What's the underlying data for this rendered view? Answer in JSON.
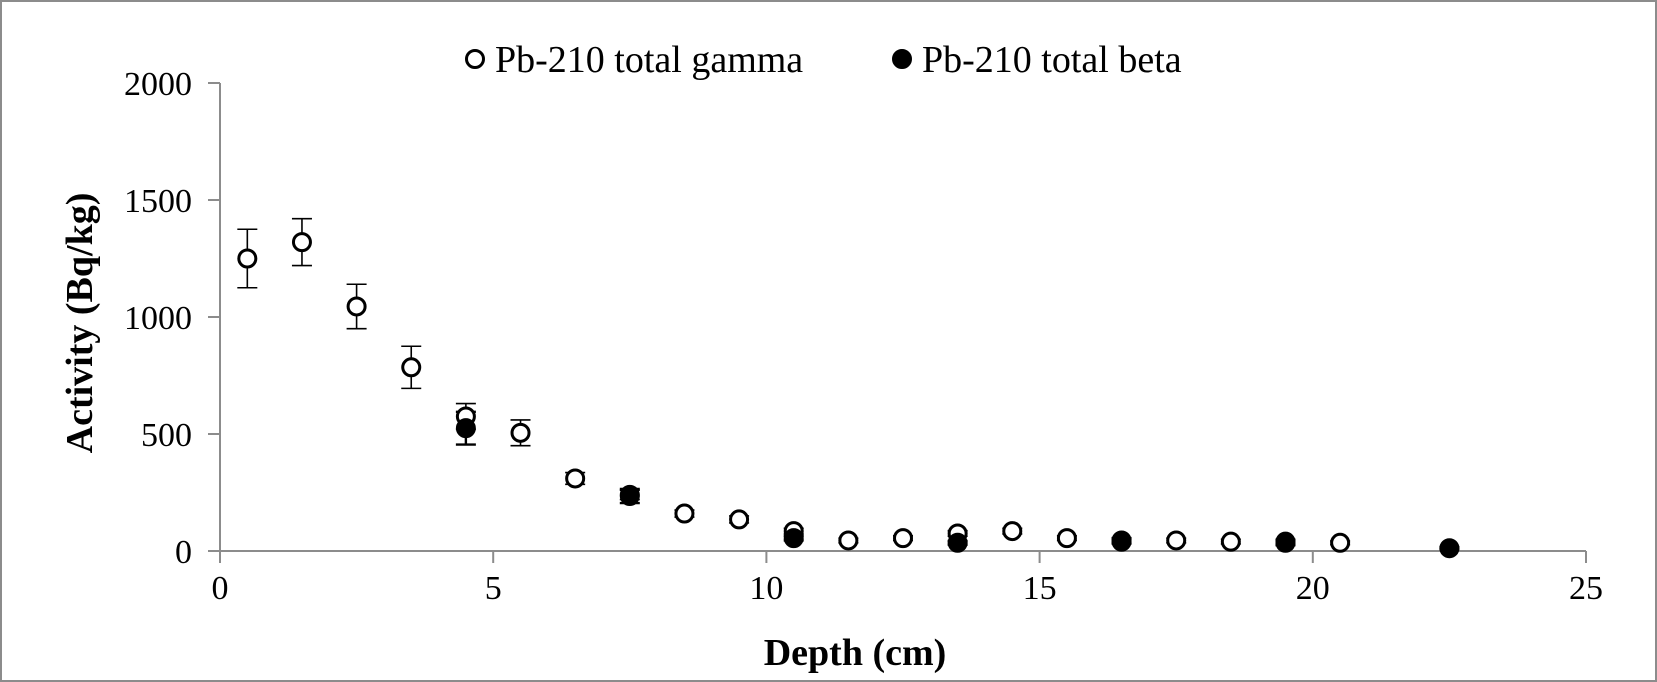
{
  "chart_data": {
    "type": "scatter",
    "xlabel": "Depth (cm)",
    "ylabel": "Activity (Bq/kg)",
    "xlim": [
      0,
      25
    ],
    "ylim": [
      0,
      2000
    ],
    "x_ticks": [
      "0",
      "5",
      "10",
      "15",
      "20",
      "25"
    ],
    "y_ticks": [
      "0",
      "500",
      "1000",
      "1500",
      "2000"
    ],
    "grid": false,
    "legend_position": "top",
    "series": [
      {
        "name": "Pb-210 total gamma",
        "marker": "open-circle",
        "color": "#000000",
        "points": [
          {
            "x": 0.5,
            "y": 1250,
            "err": 125
          },
          {
            "x": 1.5,
            "y": 1320,
            "err": 100
          },
          {
            "x": 2.5,
            "y": 1045,
            "err": 95
          },
          {
            "x": 3.5,
            "y": 785,
            "err": 90
          },
          {
            "x": 4.5,
            "y": 575,
            "err": 55
          },
          {
            "x": 5.5,
            "y": 505,
            "err": 55
          },
          {
            "x": 6.5,
            "y": 310,
            "err": 25
          },
          {
            "x": 7.5,
            "y": 240,
            "err": 20
          },
          {
            "x": 8.5,
            "y": 160,
            "err": 15
          },
          {
            "x": 9.5,
            "y": 135,
            "err": 15
          },
          {
            "x": 10.5,
            "y": 85,
            "err": 12
          },
          {
            "x": 11.5,
            "y": 45,
            "err": 10
          },
          {
            "x": 12.5,
            "y": 55,
            "err": 10
          },
          {
            "x": 13.5,
            "y": 75,
            "err": 12
          },
          {
            "x": 14.5,
            "y": 85,
            "err": 12
          },
          {
            "x": 15.5,
            "y": 55,
            "err": 10
          },
          {
            "x": 16.5,
            "y": 40,
            "err": 10
          },
          {
            "x": 17.5,
            "y": 45,
            "err": 10
          },
          {
            "x": 18.5,
            "y": 40,
            "err": 10
          },
          {
            "x": 19.5,
            "y": 40,
            "err": 10
          },
          {
            "x": 20.5,
            "y": 35,
            "err": 8
          }
        ]
      },
      {
        "name": "Pb-210 total beta",
        "marker": "filled-circle",
        "color": "#000000",
        "points": [
          {
            "x": 4.5,
            "y": 525,
            "err": 70
          },
          {
            "x": 7.5,
            "y": 235,
            "err": 30
          },
          {
            "x": 10.5,
            "y": 55,
            "err": 10
          },
          {
            "x": 13.5,
            "y": 35,
            "err": 8
          },
          {
            "x": 16.5,
            "y": 45,
            "err": 10
          },
          {
            "x": 19.5,
            "y": 35,
            "err": 10
          },
          {
            "x": 22.5,
            "y": 12,
            "err": 5
          }
        ]
      }
    ]
  }
}
